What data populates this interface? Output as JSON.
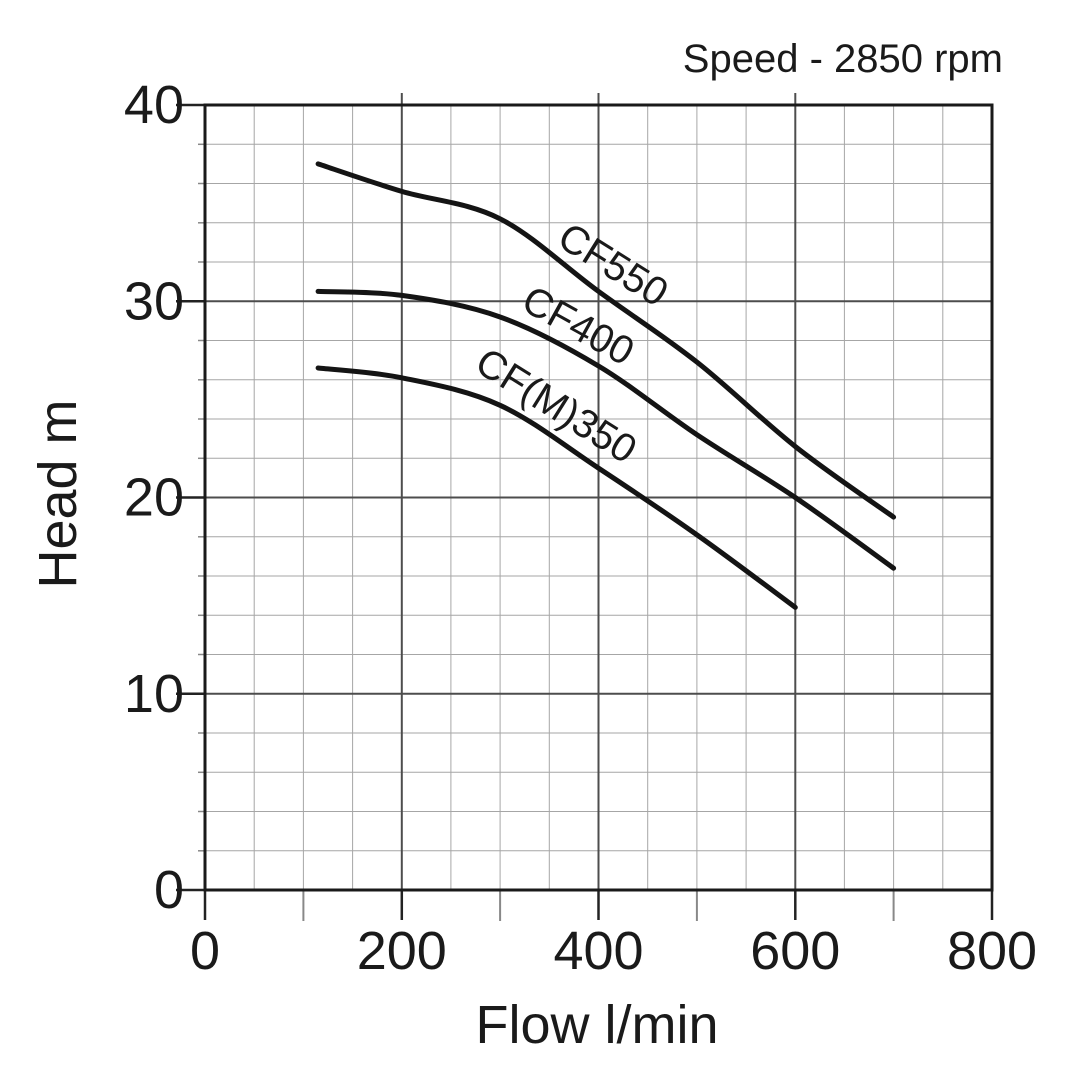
{
  "annotation": {
    "speed_label": "Speed - 2850 rpm"
  },
  "chart_data": {
    "type": "line",
    "title": "",
    "xlabel": "Flow l/min",
    "ylabel": "Head m",
    "xlim": [
      0,
      800
    ],
    "ylim": [
      0,
      40
    ],
    "annotation": "Speed - 2850 rpm",
    "grid": {
      "on": true,
      "x_minor_step": 50,
      "y_minor_step": 2,
      "x_major_step": 200,
      "y_major_step": 10
    },
    "x_ticks": [
      {
        "value": 0,
        "label": "0"
      },
      {
        "value": 200,
        "label": "200"
      },
      {
        "value": 400,
        "label": "400"
      },
      {
        "value": 600,
        "label": "600"
      },
      {
        "value": 800,
        "label": "800"
      }
    ],
    "x_minor_tick_values": [
      100,
      300,
      500,
      700
    ],
    "y_ticks": [
      {
        "value": 40,
        "label": "40"
      },
      {
        "value": 30,
        "label": "30"
      },
      {
        "value": 20,
        "label": "20"
      },
      {
        "value": 10,
        "label": "10"
      },
      {
        "value": 0,
        "label": "0"
      }
    ],
    "legend_position": "inline-labels-on-curves",
    "series": [
      {
        "name": "CF550",
        "points": [
          [
            115,
            37.0
          ],
          [
            200,
            35.6
          ],
          [
            300,
            34.2
          ],
          [
            400,
            30.5
          ],
          [
            500,
            26.9
          ],
          [
            600,
            22.6
          ],
          [
            700,
            19.0
          ]
        ]
      },
      {
        "name": "CF400",
        "points": [
          [
            115,
            30.5
          ],
          [
            200,
            30.3
          ],
          [
            300,
            29.2
          ],
          [
            400,
            26.7
          ],
          [
            500,
            23.2
          ],
          [
            600,
            20.0
          ],
          [
            700,
            16.4
          ]
        ]
      },
      {
        "name": "CF(M)350",
        "points": [
          [
            115,
            26.6
          ],
          [
            200,
            26.1
          ],
          [
            300,
            24.7
          ],
          [
            400,
            21.5
          ],
          [
            500,
            18.1
          ],
          [
            600,
            14.4
          ]
        ]
      }
    ]
  },
  "colors": {
    "background": "#ffffff",
    "text": "#1a1a1a",
    "curve": "#141414",
    "border": "#1a1a1a",
    "grid_major": "#4d4d4d",
    "grid_minor": "#a6a6a6",
    "tick_major": "#222222",
    "tick_minor": "#888888"
  }
}
